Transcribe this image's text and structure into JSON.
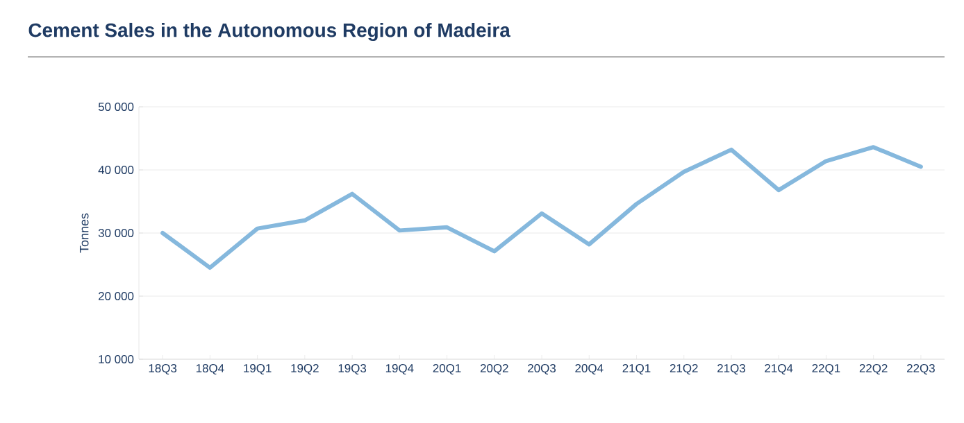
{
  "chart_data": {
    "type": "line",
    "title": "Cement Sales in the Autonomous Region of Madeira",
    "ylabel": "Tonnes",
    "categories": [
      "18Q3",
      "18Q4",
      "19Q1",
      "19Q2",
      "19Q3",
      "19Q4",
      "20Q1",
      "20Q2",
      "20Q3",
      "20Q4",
      "21Q1",
      "21Q2",
      "21Q3",
      "21Q4",
      "22Q1",
      "22Q2",
      "22Q3"
    ],
    "series": [
      {
        "color": "#85b8dd",
        "values": [
          30000,
          24500,
          30700,
          32000,
          36200,
          30400,
          30900,
          27100,
          33100,
          28200,
          34600,
          39700,
          43200,
          36800,
          41400,
          43600,
          40500
        ]
      }
    ],
    "ylim": [
      10000,
      50000
    ],
    "yticks": [
      {
        "value": 10000,
        "label": "10 000"
      },
      {
        "value": 20000,
        "label": "20 000"
      },
      {
        "value": 30000,
        "label": "30 000"
      },
      {
        "value": 40000,
        "label": "40 000"
      },
      {
        "value": 50000,
        "label": "50 000"
      }
    ],
    "grid": "y",
    "marker": "none",
    "line_style": "solid"
  }
}
